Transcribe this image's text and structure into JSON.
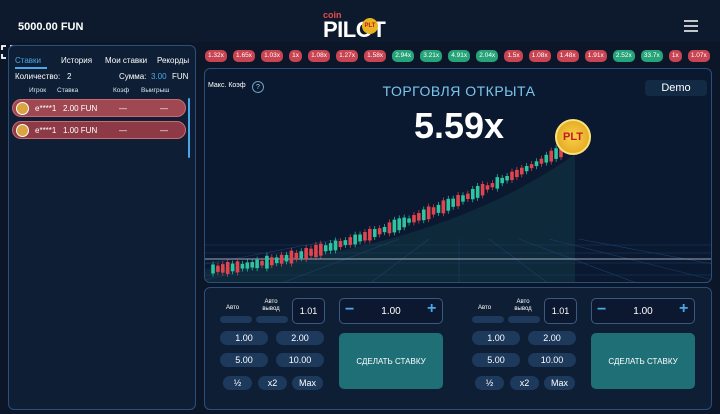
{
  "header": {
    "balance": "5000.00 FUN",
    "logo": {
      "small": "coin",
      "main": "PILOT",
      "badge": "PLT"
    }
  },
  "history": [
    "1.32x",
    "1.65x",
    "1.03x",
    "1x",
    "1.08x",
    "1.27x",
    "1.58x",
    "2.94x",
    "3.21x",
    "4.91x",
    "2.04x",
    "1.5x",
    "1.08x",
    "1.48x",
    "1.91x",
    "2.52x",
    "33.7x",
    "1x",
    "1.07x"
  ],
  "bets_panel": {
    "tabs": [
      "Ставки",
      "История",
      "Мои ставки",
      "Рекорды"
    ],
    "count_label": "Количество:",
    "count": "2",
    "sum_label": "Сумма:",
    "sum": "3.00",
    "currency": "FUN",
    "columns": [
      "Игрок",
      "Ставка",
      "Коэф",
      "Выигрыш"
    ],
    "rows": [
      [
        "e****1",
        "2.00 FUN",
        "—",
        "—"
      ],
      [
        "e****1",
        "1.00 FUN",
        "—",
        "—"
      ]
    ]
  },
  "game": {
    "max_coef": "Макс. Коэф",
    "help": "?",
    "mode": "Demo",
    "status": "ТОРГОВЛЯ ОТКРЫТА",
    "multiplier": "5.59x",
    "coin": "PLT"
  },
  "bet_panels": [
    {
      "auto": "Авто",
      "auto_cashout": "Авто вывод",
      "cashout": "1.01",
      "minus": "−",
      "amount": "1.00",
      "plus": "+",
      "quick": [
        "1.00",
        "2.00",
        "5.00",
        "10.00"
      ],
      "actions": [
        "½",
        "x2",
        "Max"
      ],
      "button": "СДЕЛАТЬ СТАВКУ"
    },
    {
      "auto": "Авто",
      "auto_cashout": "Авто вывод",
      "cashout": "1.01",
      "minus": "−",
      "amount": "1.00",
      "plus": "+",
      "quick": [
        "1.00",
        "2.00",
        "5.00",
        "10.00"
      ],
      "actions": [
        "½",
        "x2",
        "Max"
      ],
      "button": "СДЕЛАТЬ СТАВКУ"
    }
  ]
}
